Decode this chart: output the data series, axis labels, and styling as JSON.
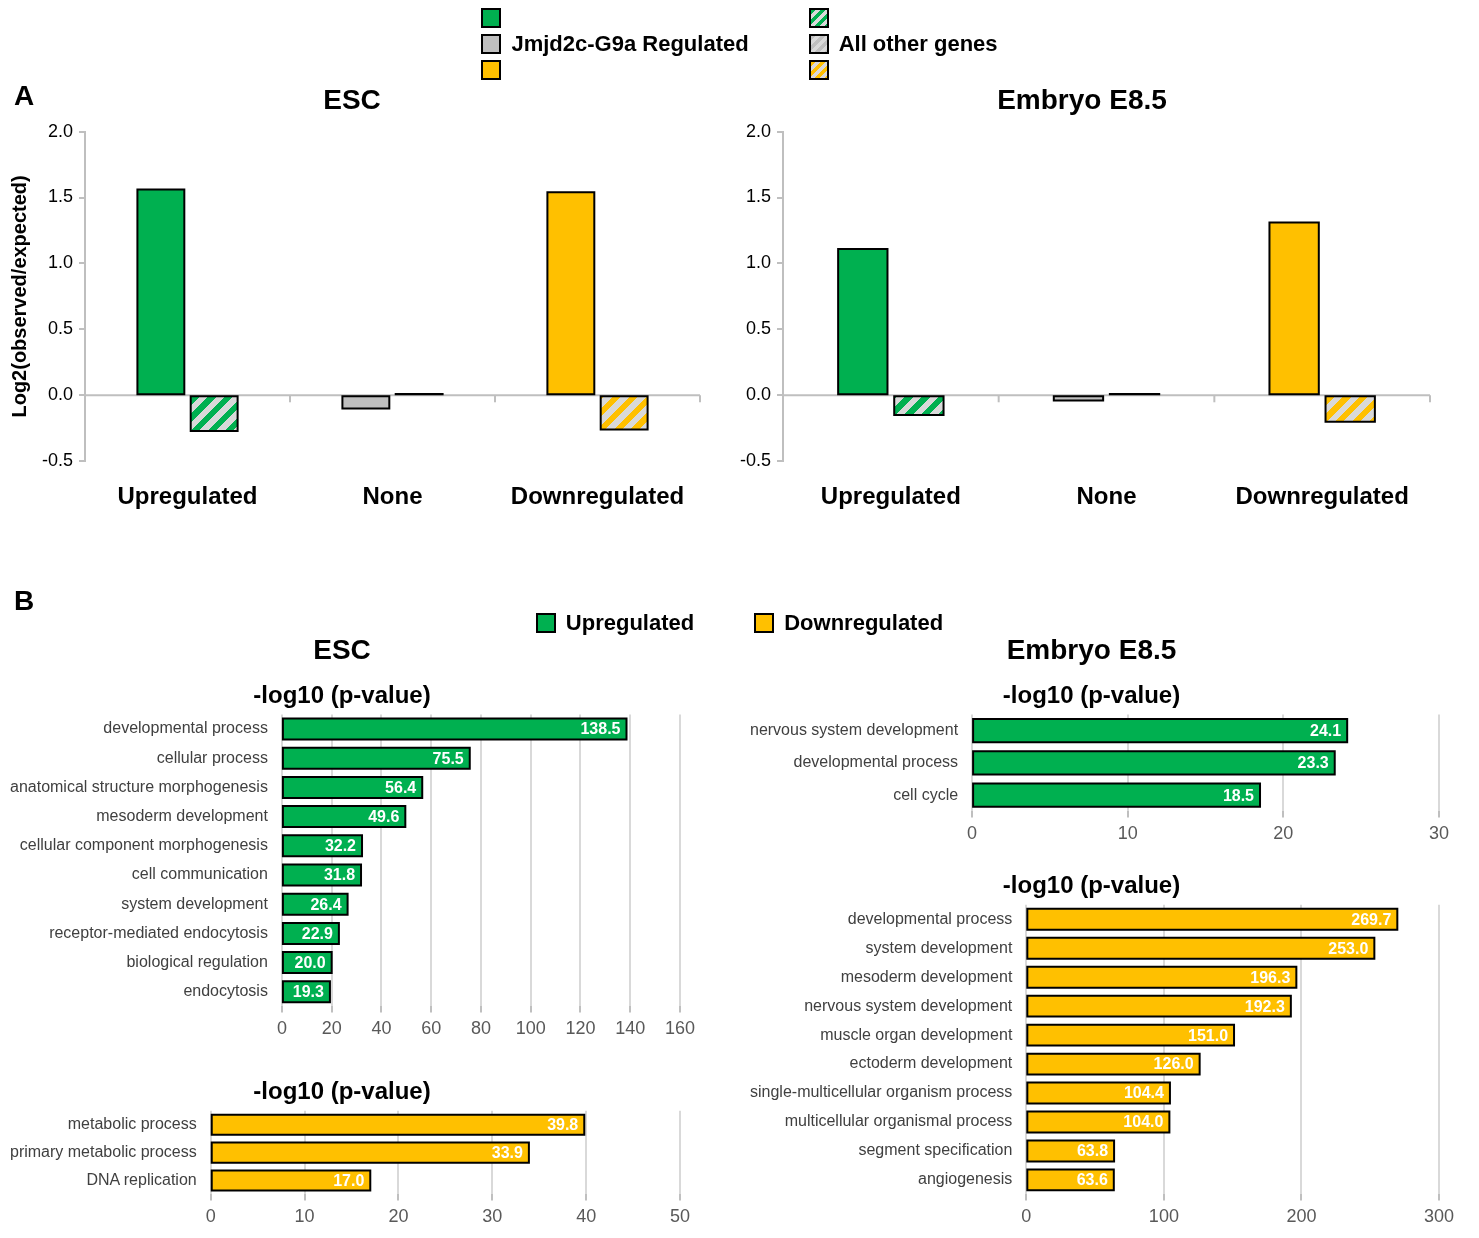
{
  "chart_data": [
    {
      "type": "bar",
      "title": "ESC",
      "ylabel": "Log2(observed/expected)",
      "annotations": [
        "A"
      ],
      "categories": [
        "Upregulated",
        "None",
        "Downregulated"
      ],
      "series": [
        {
          "name": "Jmjd2c-G9a Regulated",
          "colors": [
            "#00b050",
            "#bfbfbf",
            "#ffc000"
          ],
          "values": [
            1.56,
            -0.1,
            1.54
          ]
        },
        {
          "name": "All other genes",
          "colors": [
            "#00b050",
            "#bfbfbf",
            "#ffc000"
          ],
          "values": [
            -0.27,
            0.01,
            -0.26
          ]
        }
      ],
      "ylim": [
        -0.5,
        2
      ],
      "yticks": [
        {
          "value": 2,
          "label": "2.0"
        },
        1.5,
        {
          "value": 1,
          "label": "1.0"
        },
        0.5,
        {
          "value": 0,
          "label": "0.0"
        },
        -0.5
      ],
      "legend": "top"
    },
    {
      "type": "bar",
      "title": "Embryo E8.5",
      "categories": [
        "Upregulated",
        "None",
        "Downregulated"
      ],
      "series": [
        {
          "colors": [
            "#00b050",
            "#bfbfbf",
            "#ffc000"
          ],
          "values": [
            1.11,
            -0.04,
            1.31
          ]
        },
        {
          "colors": [
            "#00b050",
            "#bfbfbf",
            "#ffc000"
          ],
          "values": [
            -0.15,
            0.01,
            -0.2
          ]
        }
      ],
      "ylim": [
        -0.5,
        2
      ],
      "yticks": [
        {
          "value": 2,
          "label": "2.0"
        },
        1.5,
        {
          "value": 1,
          "label": "1.0"
        },
        0.5,
        {
          "value": 0,
          "label": "0.0"
        },
        -0.5
      ]
    },
    {
      "type": "bar",
      "orientation": "horizontal",
      "title": "ESC",
      "subtitle": "-log10 (p-value)",
      "annotations": [
        "B"
      ],
      "categories": [
        "developmental process",
        "cellular process",
        "anatomical structure morphogenesis",
        "mesoderm development",
        "cellular component morphogenesis",
        "cell communication",
        "system development",
        "receptor-mediated endocytosis",
        "biological regulation",
        "endocytosis"
      ],
      "series": [
        {
          "name": "Upregulated",
          "color": "#00b050",
          "values": [
            138.5,
            75.5,
            56.4,
            49.6,
            32.2,
            31.8,
            26.4,
            22.9,
            20.0,
            19.3
          ],
          "value_labels": [
            "138.5",
            "75.5",
            "56.4",
            "49.6",
            "32.2",
            "31.8",
            "26.4",
            "22.9",
            "20.0",
            "19.3"
          ]
        }
      ],
      "xlim": [
        0,
        160
      ],
      "xticks": [
        0,
        20,
        40,
        60,
        80,
        100,
        120,
        140,
        160
      ],
      "grid": "x",
      "legend": "top"
    },
    {
      "type": "bar",
      "orientation": "horizontal",
      "subtitle": "-log10 (p-value)",
      "categories": [
        "metabolic process",
        "primary metabolic process",
        "DNA replication"
      ],
      "series": [
        {
          "name": "Downregulated",
          "color": "#ffc000",
          "values": [
            39.8,
            33.9,
            17.0
          ],
          "value_labels": [
            "39.8",
            "33.9",
            "17.0"
          ]
        }
      ],
      "xlim": [
        0,
        50
      ],
      "xticks": [
        0,
        10,
        20,
        30,
        40,
        50
      ],
      "grid": "x",
      "legend": "top"
    },
    {
      "type": "bar",
      "orientation": "horizontal",
      "title": "Embryo E8.5",
      "subtitle": "-log10 (p-value)",
      "categories": [
        "nervous system development",
        "developmental process",
        "cell cycle"
      ],
      "series": [
        {
          "color": "#00b050",
          "values": [
            24.1,
            23.3,
            18.5
          ],
          "value_labels": [
            "24.1",
            "23.3",
            "18.5"
          ]
        }
      ],
      "xlim": [
        0,
        30
      ],
      "xticks": [
        0,
        10,
        20,
        30
      ],
      "grid": "x"
    },
    {
      "type": "bar",
      "orientation": "horizontal",
      "subtitle": "-log10 (p-value)",
      "categories": [
        "developmental process",
        "system development",
        "mesoderm development",
        "nervous system development",
        "muscle organ development",
        "ectoderm development",
        "single-multicellular organism process",
        "multicellular organismal process",
        "segment specification",
        "angiogenesis"
      ],
      "series": [
        {
          "color": "#ffc000",
          "values": [
            269.7,
            253.0,
            196.3,
            192.3,
            151.0,
            126.0,
            104.4,
            104.0,
            63.8,
            63.6
          ],
          "value_labels": [
            "269.7",
            "253.0",
            "196.3",
            "192.3",
            "151.0",
            "126.0",
            "104.4",
            "104.0",
            "63.8",
            "63.6"
          ]
        }
      ],
      "xlim": [
        0,
        300
      ],
      "xticks": [
        0,
        100,
        200,
        300
      ],
      "grid": "x"
    }
  ]
}
